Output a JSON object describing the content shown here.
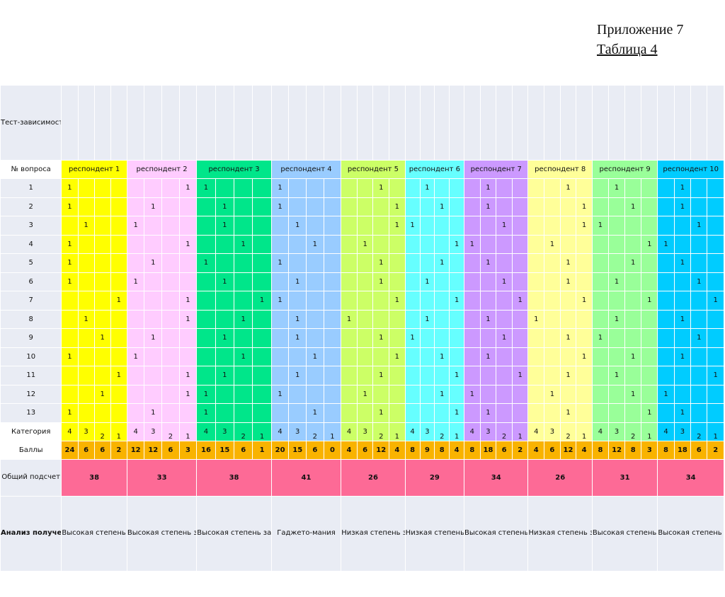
{
  "heading": {
    "line1": "Приложение 7",
    "line2": "Таблица 4"
  },
  "labels": {
    "test": "Тест-зависимость",
    "question_no": "№ вопроса",
    "category": "Категория",
    "points": "Баллы",
    "total": "Общий подсчет",
    "analysis": "Анализ полученных данных"
  },
  "questions": [
    "1",
    "2",
    "3",
    "4",
    "5",
    "6",
    "7",
    "8",
    "9",
    "10",
    "11",
    "12",
    "13"
  ],
  "respondents": [
    {
      "name": "респондент 1",
      "color": "#ffff00",
      "answers": [
        0,
        0,
        1,
        0,
        0,
        0,
        3,
        1,
        2,
        0,
        3,
        2,
        0
      ],
      "categories": [
        "4",
        "3",
        "2",
        "1"
      ],
      "points": [
        "24",
        "6",
        "6",
        "2"
      ],
      "total": "38",
      "analysis": "Высокая степень зависимости"
    },
    {
      "name": "респондент 2",
      "color": "#ffccff",
      "answers": [
        3,
        1,
        0,
        3,
        1,
        0,
        3,
        3,
        1,
        0,
        3,
        3,
        1
      ],
      "categories": [
        "4",
        "3",
        "2",
        "1"
      ],
      "points": [
        "12",
        "12",
        "6",
        "3"
      ],
      "total": "33",
      "analysis": "Высокая степень зависимости"
    },
    {
      "name": "респондент 3",
      "color": "#00e68a",
      "answers": [
        0,
        1,
        1,
        2,
        0,
        1,
        3,
        2,
        1,
        2,
        1,
        0,
        0
      ],
      "categories": [
        "4",
        "3",
        "2",
        "1"
      ],
      "points": [
        "16",
        "15",
        "6",
        "1"
      ],
      "total": "38",
      "analysis": "Высокая степень зависимости"
    },
    {
      "name": "респондент 4",
      "color": "#99ccff",
      "answers": [
        0,
        0,
        1,
        2,
        0,
        1,
        0,
        1,
        1,
        2,
        1,
        0,
        2
      ],
      "categories": [
        "4",
        "3",
        "2",
        "1"
      ],
      "points": [
        "20",
        "15",
        "6",
        "0"
      ],
      "total": "41",
      "analysis": "Гаджето-мания"
    },
    {
      "name": "респондент 5",
      "color": "#ccff66",
      "answers": [
        2,
        3,
        3,
        1,
        2,
        2,
        3,
        0,
        2,
        3,
        2,
        1,
        2
      ],
      "categories": [
        "4",
        "3",
        "2",
        "1"
      ],
      "points": [
        "4",
        "6",
        "12",
        "4"
      ],
      "total": "26",
      "analysis": "Низкая степень зависимости"
    },
    {
      "name": "респондент 6",
      "color": "#66ffff",
      "answers": [
        1,
        2,
        0,
        3,
        2,
        1,
        3,
        1,
        0,
        2,
        3,
        2,
        3
      ],
      "categories": [
        "4",
        "3",
        "2",
        "1"
      ],
      "points": [
        "8",
        "9",
        "8",
        "4"
      ],
      "total": "29",
      "analysis": "Низкая степень Зависи-мости"
    },
    {
      "name": "респондент 7",
      "color": "#cc99ff",
      "answers": [
        1,
        1,
        2,
        0,
        1,
        2,
        3,
        1,
        2,
        1,
        3,
        0,
        1
      ],
      "categories": [
        "4",
        "3",
        "2",
        "1"
      ],
      "points": [
        "8",
        "18",
        "6",
        "2"
      ],
      "total": "34",
      "analysis": "Высокая степень зависимости"
    },
    {
      "name": "респондент 8",
      "color": "#ffff99",
      "answers": [
        2,
        3,
        3,
        1,
        2,
        2,
        3,
        0,
        2,
        3,
        2,
        1,
        2
      ],
      "categories": [
        "4",
        "3",
        "2",
        "1"
      ],
      "points": [
        "4",
        "6",
        "12",
        "4"
      ],
      "total": "26",
      "analysis": "Низкая степень зависимости"
    },
    {
      "name": "респондент 9",
      "color": "#99ff99",
      "answers": [
        1,
        2,
        0,
        3,
        2,
        1,
        3,
        1,
        0,
        2,
        1,
        2,
        3
      ],
      "categories": [
        "4",
        "3",
        "2",
        "1"
      ],
      "points": [
        "8",
        "12",
        "8",
        "3"
      ],
      "total": "31",
      "analysis": "Высокая степень зависимости"
    },
    {
      "name": "респондент 10",
      "color": "#00ccff",
      "answers": [
        1,
        1,
        2,
        0,
        1,
        2,
        3,
        1,
        2,
        1,
        3,
        0,
        1
      ],
      "categories": [
        "4",
        "3",
        "2",
        "1"
      ],
      "points": [
        "8",
        "18",
        "6",
        "2"
      ],
      "total": "34",
      "analysis": "Высокая степень зависимости"
    }
  ],
  "answer_mark": "1"
}
